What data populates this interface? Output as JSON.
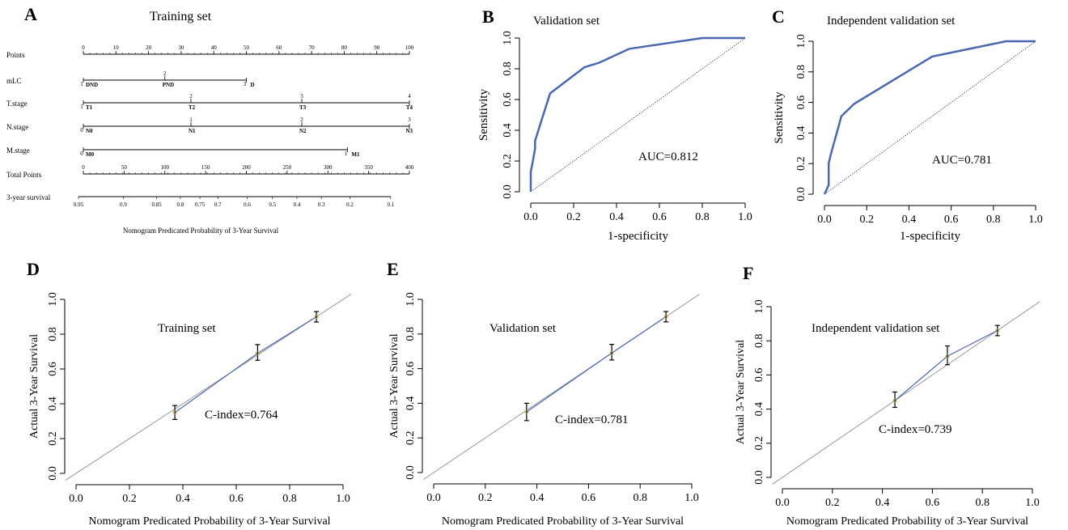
{
  "panels": {
    "A": {
      "letter": "A",
      "title": "Training set"
    },
    "B": {
      "letter": "B",
      "title": "Validation set"
    },
    "C": {
      "letter": "C",
      "title": "Independent validation set"
    },
    "D": {
      "letter": "D",
      "title": "Training set"
    },
    "E": {
      "letter": "E",
      "title": "Validation set"
    },
    "F": {
      "letter": "F",
      "title": "Independent validation set"
    }
  },
  "colors": {
    "curve": "#4a67b0",
    "diagonal": "#999999",
    "axis": "#000000",
    "point": "#b8a24a"
  },
  "chart_data": [
    {
      "panel": "A",
      "type": "nomogram",
      "title": "Training set",
      "xlabel": "Nomogram Predicated Probability of 3-Year Survival",
      "rows": [
        {
          "label": "Points",
          "kind": "scale",
          "ticks": [
            0,
            10,
            20,
            30,
            40,
            50,
            60,
            70,
            80,
            90,
            100
          ],
          "range": [
            0,
            100
          ]
        },
        {
          "label": "mLC",
          "kind": "factor",
          "points": [
            {
              "code": "1",
              "name": "DND",
              "value": 0
            },
            {
              "code": "2",
              "name": "PND",
              "value": 25
            },
            {
              "code": "3",
              "name": "D",
              "value": 50
            }
          ]
        },
        {
          "label": "T.stage",
          "kind": "factor",
          "points": [
            {
              "code": "1",
              "name": "T1",
              "value": 0
            },
            {
              "code": "2",
              "name": "T2",
              "value": 33
            },
            {
              "code": "3",
              "name": "T3",
              "value": 67
            },
            {
              "code": "4",
              "name": "T4",
              "value": 100
            }
          ]
        },
        {
          "label": "N.stage",
          "kind": "factor",
          "points": [
            {
              "code": "0",
              "name": "N0",
              "value": 0
            },
            {
              "code": "1",
              "name": "N1",
              "value": 33
            },
            {
              "code": "2",
              "name": "N2",
              "value": 67
            },
            {
              "code": "3",
              "name": "N3",
              "value": 100
            }
          ]
        },
        {
          "label": "M.stage",
          "kind": "factor",
          "points": [
            {
              "code": "0",
              "name": "M0",
              "value": 0
            },
            {
              "code": "1",
              "name": "M1",
              "value": 81
            }
          ]
        },
        {
          "label": "Total Points",
          "kind": "scale",
          "ticks": [
            0,
            50,
            100,
            150,
            200,
            250,
            300,
            350,
            400
          ],
          "range": [
            0,
            400
          ]
        },
        {
          "label": "3-year survival",
          "kind": "prob",
          "ticks": [
            {
              "label": "0.95",
              "points": -6
            },
            {
              "label": "0.9",
              "points": 49
            },
            {
              "label": "0.85",
              "points": 90
            },
            {
              "label": "0.8",
              "points": 119
            },
            {
              "label": "0.75",
              "points": 143
            },
            {
              "label": "0.7",
              "points": 165
            },
            {
              "label": "0.6",
              "points": 201
            },
            {
              "label": "0.5",
              "points": 232
            },
            {
              "label": "0.4",
              "points": 262
            },
            {
              "label": "0.3",
              "points": 292
            },
            {
              "label": "0.2",
              "points": 327
            },
            {
              "label": "0.1",
              "points": 377
            }
          ]
        }
      ]
    },
    {
      "panel": "B",
      "type": "line",
      "title": "Validation set",
      "xlabel": "1-specificity",
      "ylabel": "Sensitivity",
      "xlim": [
        0,
        1
      ],
      "ylim": [
        0,
        1
      ],
      "xticks": [
        "0.0",
        "0.2",
        "0.4",
        "0.6",
        "0.8",
        "1.0"
      ],
      "yticks": [
        "0.0",
        "0.2",
        "0.4",
        "0.6",
        "0.8",
        "1.0"
      ],
      "annotation": "AUC=0.812",
      "x": [
        0,
        0,
        0.01,
        0.02,
        0.02,
        0.04,
        0.09,
        0.25,
        0.32,
        0.46,
        0.8,
        1
      ],
      "y": [
        0,
        0.13,
        0.2,
        0.28,
        0.33,
        0.42,
        0.64,
        0.81,
        0.84,
        0.93,
        1,
        1
      ]
    },
    {
      "panel": "C",
      "type": "line",
      "title": "Independent validation set",
      "xlabel": "1-specificity",
      "ylabel": "Sensitivity",
      "xlim": [
        0,
        1
      ],
      "ylim": [
        0,
        1
      ],
      "xticks": [
        "0.0",
        "0.2",
        "0.4",
        "0.6",
        "0.8",
        "1.0"
      ],
      "yticks": [
        "0.0",
        "0.2",
        "0.4",
        "0.6",
        "0.8",
        "1.0"
      ],
      "annotation": "AUC=0.781",
      "x": [
        0,
        0.02,
        0.02,
        0.03,
        0.06,
        0.08,
        0.14,
        0.51,
        0.86,
        1
      ],
      "y": [
        0,
        0.06,
        0.2,
        0.26,
        0.41,
        0.51,
        0.59,
        0.9,
        1,
        1
      ]
    },
    {
      "panel": "D",
      "type": "scatter",
      "title": "Training set",
      "xlabel": "Nomogram Predicated Probability of 3-Year Survival",
      "ylabel": "Actual 3-Year Survival",
      "xlim": [
        0,
        1
      ],
      "ylim": [
        0,
        1
      ],
      "xticks": [
        "0.0",
        "0.2",
        "0.4",
        "0.6",
        "0.8",
        "1.0"
      ],
      "yticks": [
        "0.0",
        "0.2",
        "0.4",
        "0.6",
        "0.8",
        "1.0"
      ],
      "annotation": "C-index=0.764",
      "x": [
        0.37,
        0.68,
        0.9
      ],
      "y": [
        0.35,
        0.69,
        0.9
      ],
      "err_low": [
        0.31,
        0.65,
        0.87
      ],
      "err_high": [
        0.39,
        0.74,
        0.93
      ]
    },
    {
      "panel": "E",
      "type": "scatter",
      "title": "Validation set",
      "xlabel": "Nomogram Predicated Probability of 3-Year Survival",
      "ylabel": "Actual 3-Year Survival",
      "xlim": [
        0,
        1
      ],
      "ylim": [
        0,
        1
      ],
      "xticks": [
        "0.0",
        "0.2",
        "0.4",
        "0.6",
        "0.8",
        "1.0"
      ],
      "yticks": [
        "0.0",
        "0.2",
        "0.4",
        "0.6",
        "0.8",
        "1.0"
      ],
      "annotation": "C-index=0.781",
      "x": [
        0.36,
        0.69,
        0.9
      ],
      "y": [
        0.35,
        0.69,
        0.9
      ],
      "err_low": [
        0.3,
        0.65,
        0.87
      ],
      "err_high": [
        0.4,
        0.74,
        0.93
      ]
    },
    {
      "panel": "F",
      "type": "scatter",
      "title": "Independent validation set",
      "xlabel": "Nomogram Predicated Probability of 3-Year Survival",
      "ylabel": "Actual 3-Year Survival",
      "xlim": [
        0,
        1
      ],
      "ylim": [
        0,
        1
      ],
      "xticks": [
        "0.0",
        "0.2",
        "0.4",
        "0.6",
        "0.8",
        "1.0"
      ],
      "yticks": [
        "0.0",
        "0.2",
        "0.4",
        "0.6",
        "0.8",
        "1.0"
      ],
      "annotation": "C-index=0.739",
      "x": [
        0.45,
        0.66,
        0.86
      ],
      "y": [
        0.45,
        0.71,
        0.86
      ],
      "err_low": [
        0.41,
        0.66,
        0.83
      ],
      "err_high": [
        0.5,
        0.77,
        0.89
      ]
    }
  ]
}
